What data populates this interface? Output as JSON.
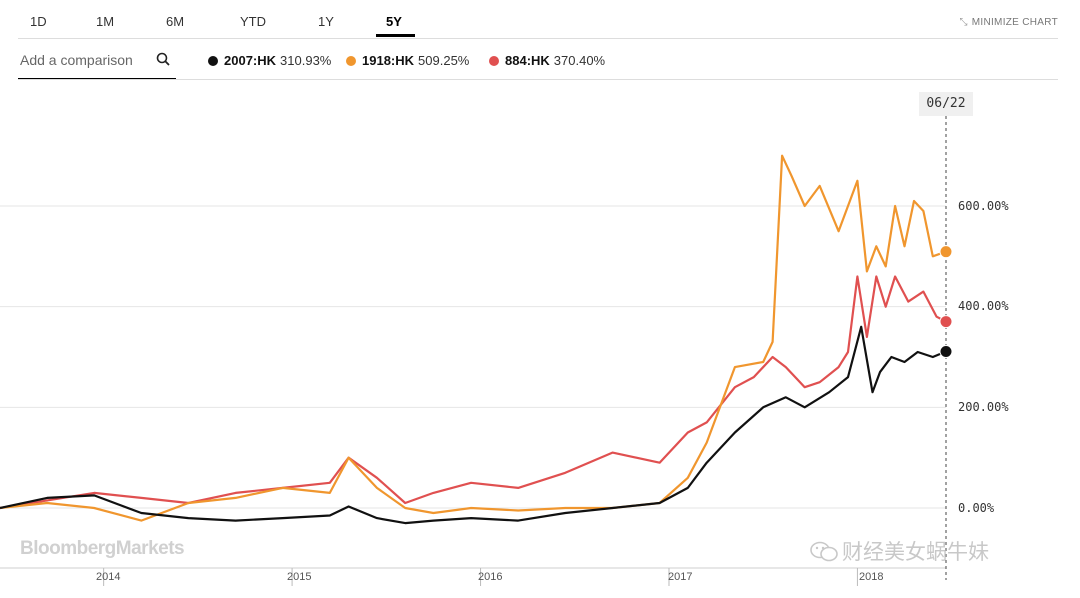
{
  "tabs": [
    "1D",
    "1M",
    "6M",
    "YTD",
    "1Y",
    "5Y"
  ],
  "active_tab": "5Y",
  "minimize_label": "MINIMIZE CHART",
  "search": {
    "placeholder": "Add a comparison"
  },
  "date_badge": "06/22",
  "brand_wordmark": "BloombergMarkets",
  "watermark_text": "财经美女蜗牛妹",
  "chart_data": {
    "type": "line",
    "x_ticks": [
      "2014",
      "2015",
      "2016",
      "2017",
      "2018"
    ],
    "y_ticks": [
      "0.00%",
      "200.00%",
      "400.00%",
      "600.00%"
    ],
    "xlim": [
      "2013-06",
      "2018-06-22"
    ],
    "ylim": [
      -100,
      800
    ],
    "grid": true,
    "series": [
      {
        "name": "2007:HK",
        "change": "310.93%",
        "color": "#111111",
        "x": [
          2013.45,
          2013.7,
          2013.95,
          2014.2,
          2014.45,
          2014.7,
          2014.95,
          2015.2,
          2015.3,
          2015.45,
          2015.6,
          2015.75,
          2015.95,
          2016.2,
          2016.45,
          2016.7,
          2016.95,
          2017.1,
          2017.2,
          2017.35,
          2017.5,
          2017.62,
          2017.72,
          2017.85,
          2017.95,
          2018.02,
          2018.08,
          2018.12,
          2018.18,
          2018.25,
          2018.32,
          2018.4,
          2018.47
        ],
        "y": [
          0,
          20,
          25,
          -10,
          -20,
          -25,
          -20,
          -15,
          3,
          -20,
          -30,
          -25,
          -20,
          -25,
          -10,
          0,
          10,
          40,
          90,
          150,
          200,
          220,
          200,
          230,
          260,
          360,
          230,
          270,
          300,
          290,
          310,
          300,
          310.93
        ]
      },
      {
        "name": "1918:HK",
        "change": "509.25%",
        "color": "#f0962e",
        "x": [
          2013.45,
          2013.7,
          2013.95,
          2014.2,
          2014.45,
          2014.7,
          2014.95,
          2015.2,
          2015.3,
          2015.45,
          2015.6,
          2015.75,
          2015.95,
          2016.2,
          2016.45,
          2016.7,
          2016.95,
          2017.1,
          2017.2,
          2017.35,
          2017.5,
          2017.55,
          2017.6,
          2017.65,
          2017.72,
          2017.8,
          2017.9,
          2018.0,
          2018.05,
          2018.1,
          2018.15,
          2018.2,
          2018.25,
          2018.3,
          2018.35,
          2018.4,
          2018.47
        ],
        "y": [
          0,
          10,
          0,
          -25,
          10,
          20,
          40,
          30,
          100,
          40,
          0,
          -10,
          0,
          -5,
          0,
          0,
          10,
          60,
          130,
          280,
          290,
          330,
          700,
          660,
          600,
          640,
          550,
          650,
          470,
          520,
          480,
          600,
          520,
          610,
          590,
          500,
          509.25
        ]
      },
      {
        "name": "884:HK",
        "change": "370.40%",
        "color": "#e05050",
        "x": [
          2013.45,
          2013.7,
          2013.95,
          2014.2,
          2014.45,
          2014.7,
          2014.95,
          2015.2,
          2015.3,
          2015.45,
          2015.6,
          2015.75,
          2015.95,
          2016.2,
          2016.45,
          2016.7,
          2016.95,
          2017.1,
          2017.2,
          2017.35,
          2017.45,
          2017.55,
          2017.62,
          2017.72,
          2017.8,
          2017.9,
          2017.95,
          2018.0,
          2018.05,
          2018.1,
          2018.15,
          2018.2,
          2018.27,
          2018.35,
          2018.42,
          2018.47
        ],
        "y": [
          0,
          15,
          30,
          20,
          10,
          30,
          40,
          50,
          100,
          60,
          10,
          30,
          50,
          40,
          70,
          110,
          90,
          150,
          170,
          240,
          260,
          300,
          280,
          240,
          250,
          280,
          310,
          460,
          340,
          460,
          400,
          460,
          410,
          430,
          380,
          370.4
        ]
      }
    ]
  }
}
